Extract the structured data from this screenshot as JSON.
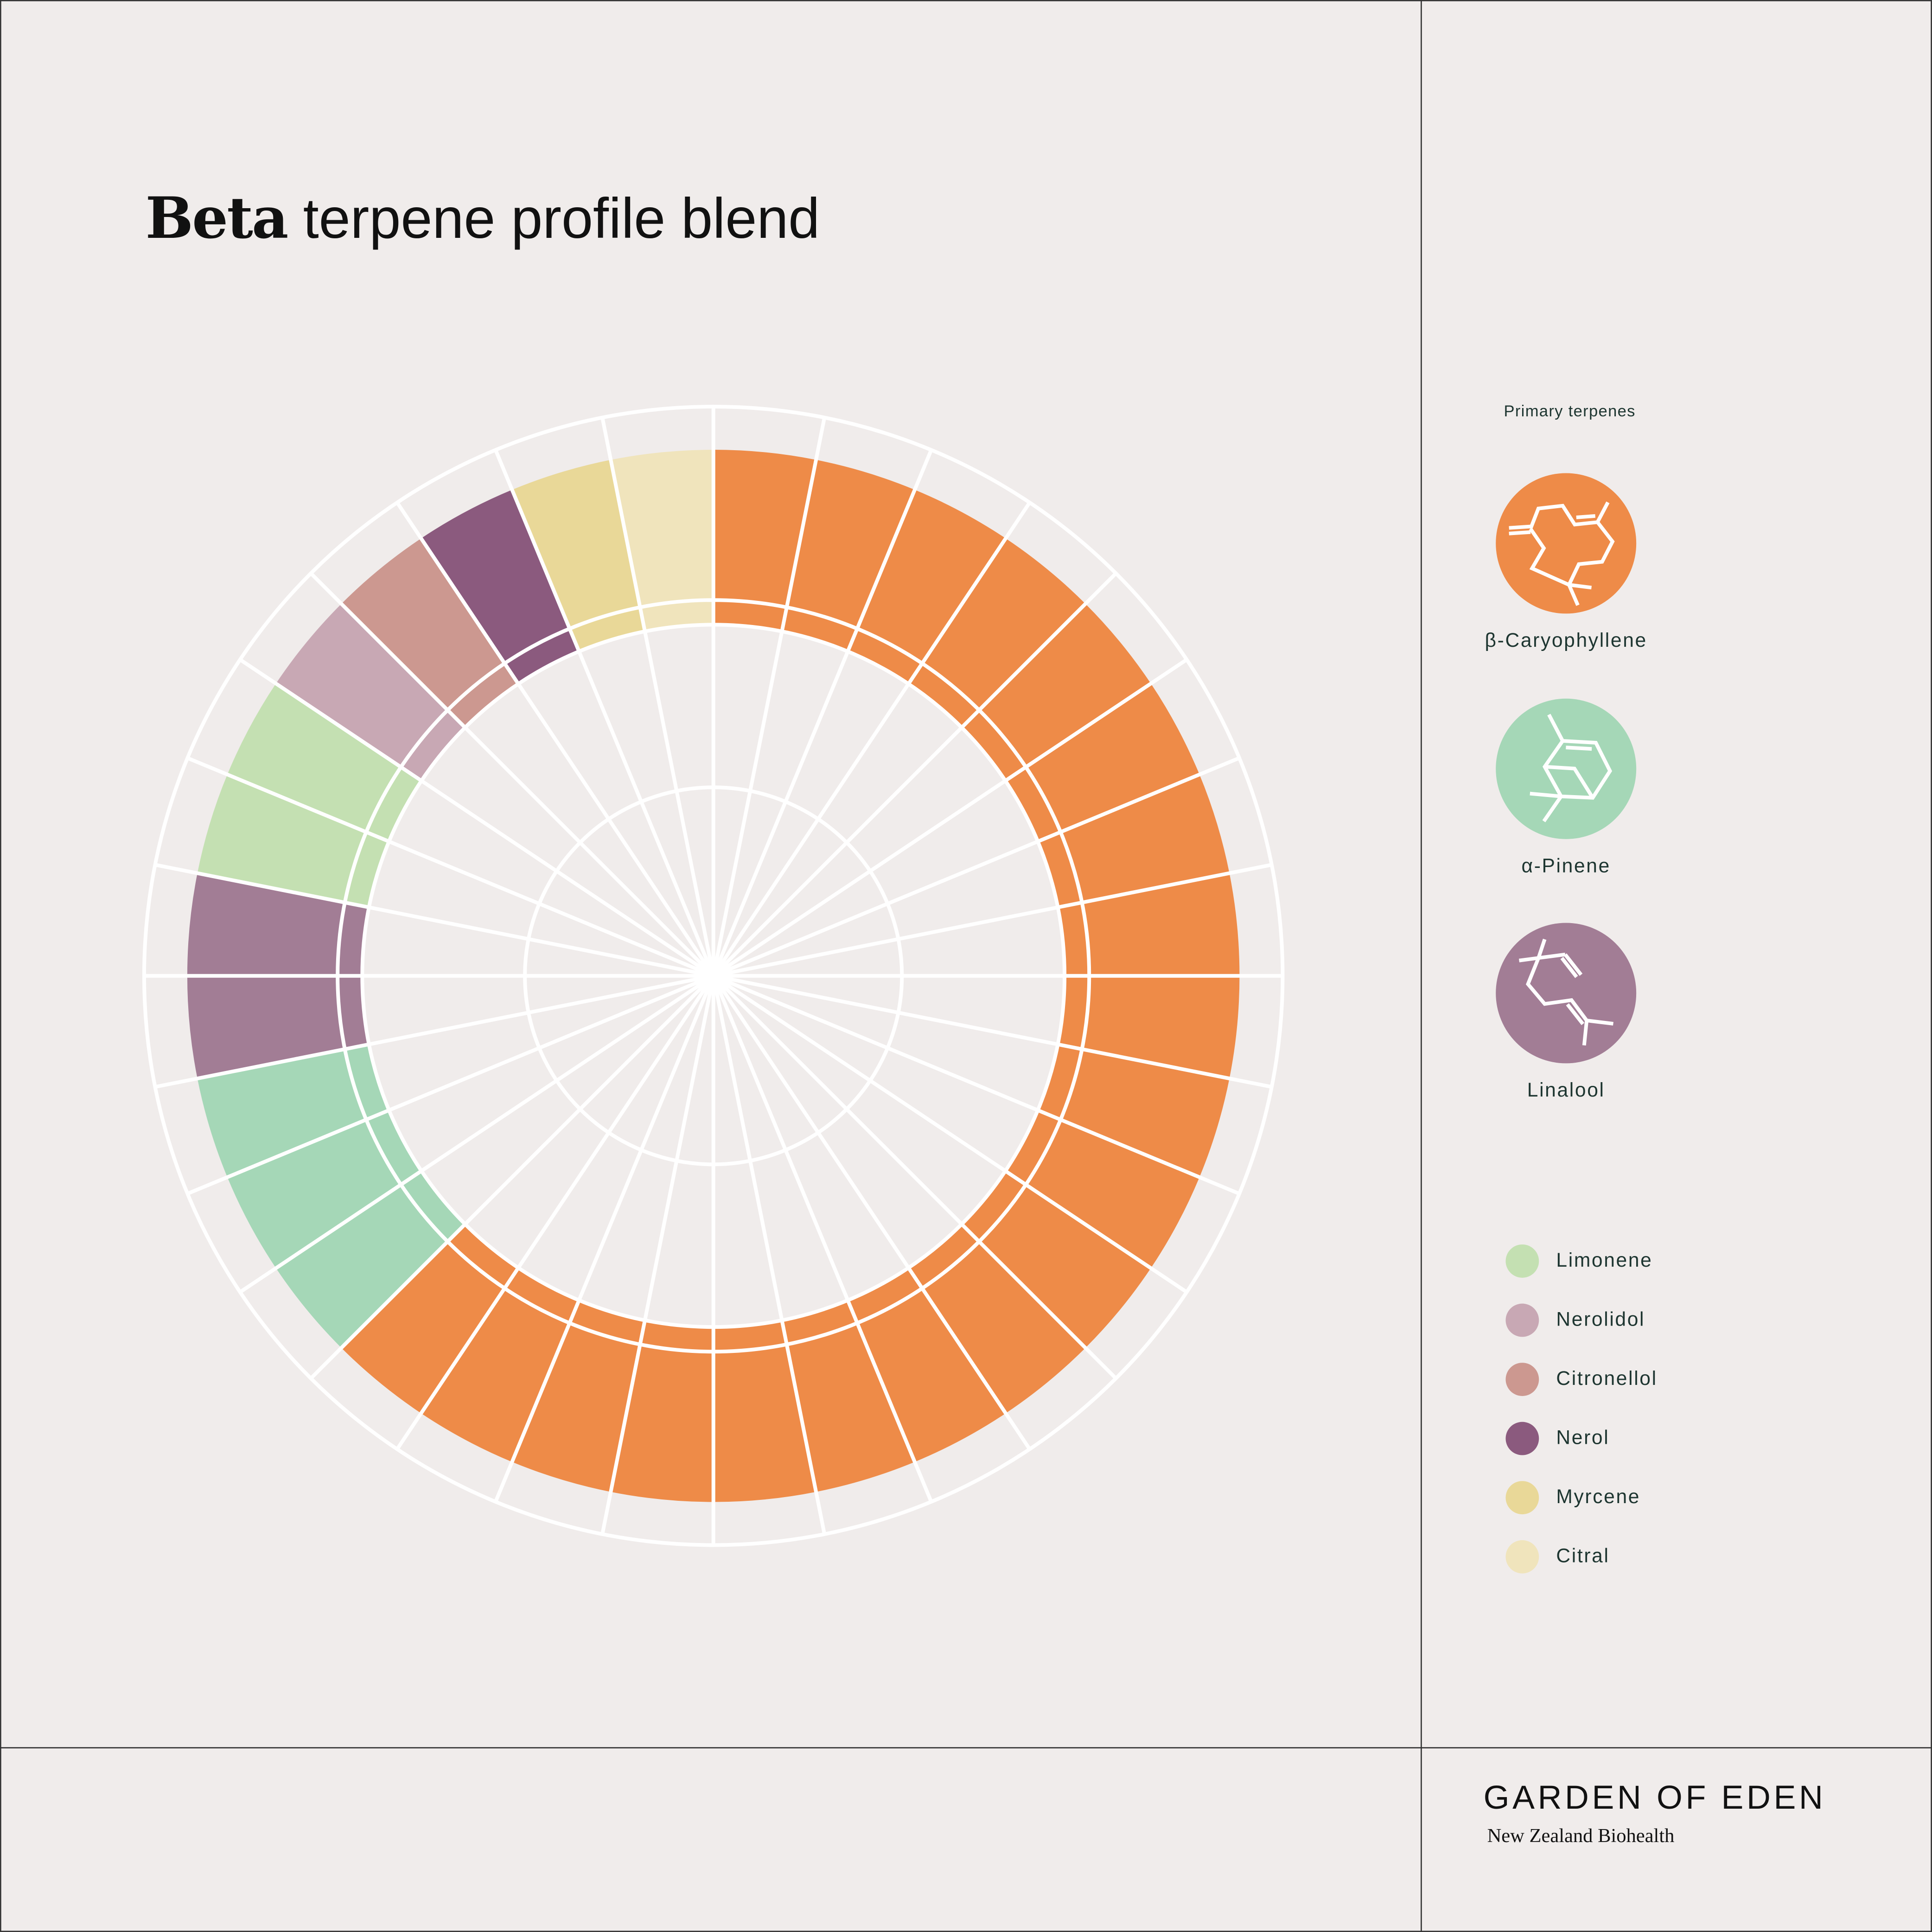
{
  "title": {
    "bold": "Beta",
    "rest": " terpene profile blend"
  },
  "sidebar": {
    "heading": "Primary terpenes",
    "primary": [
      {
        "name": "β-Caryophyllene",
        "color": "#EE8B48",
        "icon": "caryophyllene-molecule-icon"
      },
      {
        "name": "α-Pinene",
        "color": "#A5D7B7",
        "icon": "pinene-molecule-icon"
      },
      {
        "name": "Linalool",
        "color": "#A27D95",
        "icon": "linalool-molecule-icon"
      }
    ],
    "legend": [
      {
        "name": "Limonene",
        "color": "#C4E0B2"
      },
      {
        "name": "Nerolidol",
        "color": "#C8A8B4"
      },
      {
        "name": "Citronellol",
        "color": "#CC9890"
      },
      {
        "name": "Nerol",
        "color": "#8B5A7E"
      },
      {
        "name": "Myrcene",
        "color": "#E9D898"
      },
      {
        "name": "Citral",
        "color": "#F0E4BC"
      }
    ]
  },
  "brand": {
    "name": "GARDEN OF EDEN",
    "tagline": "New Zealand Biohealth"
  },
  "chart_data": {
    "type": "pie",
    "title": "Beta terpene profile blend",
    "total_segments": 32,
    "start": "top, clockwise",
    "series": [
      {
        "name": "β-Caryophyllene",
        "segments": 20,
        "color": "#EE8B48"
      },
      {
        "name": "α-Pinene",
        "segments": 3,
        "color": "#A5D7B7"
      },
      {
        "name": "Linalool",
        "segments": 2,
        "color": "#A27D95"
      },
      {
        "name": "Limonene",
        "segments": 2,
        "color": "#C4E0B2"
      },
      {
        "name": "Nerolidol",
        "segments": 1,
        "color": "#C8A8B4"
      },
      {
        "name": "Citronellol",
        "segments": 1,
        "color": "#CC9890"
      },
      {
        "name": "Nerol",
        "segments": 1,
        "color": "#8B5A7E"
      },
      {
        "name": "Myrcene",
        "segments": 1,
        "color": "#E9D898"
      },
      {
        "name": "Citral",
        "segments": 1,
        "color": "#F0E4BC"
      }
    ],
    "legend_position": "right"
  }
}
